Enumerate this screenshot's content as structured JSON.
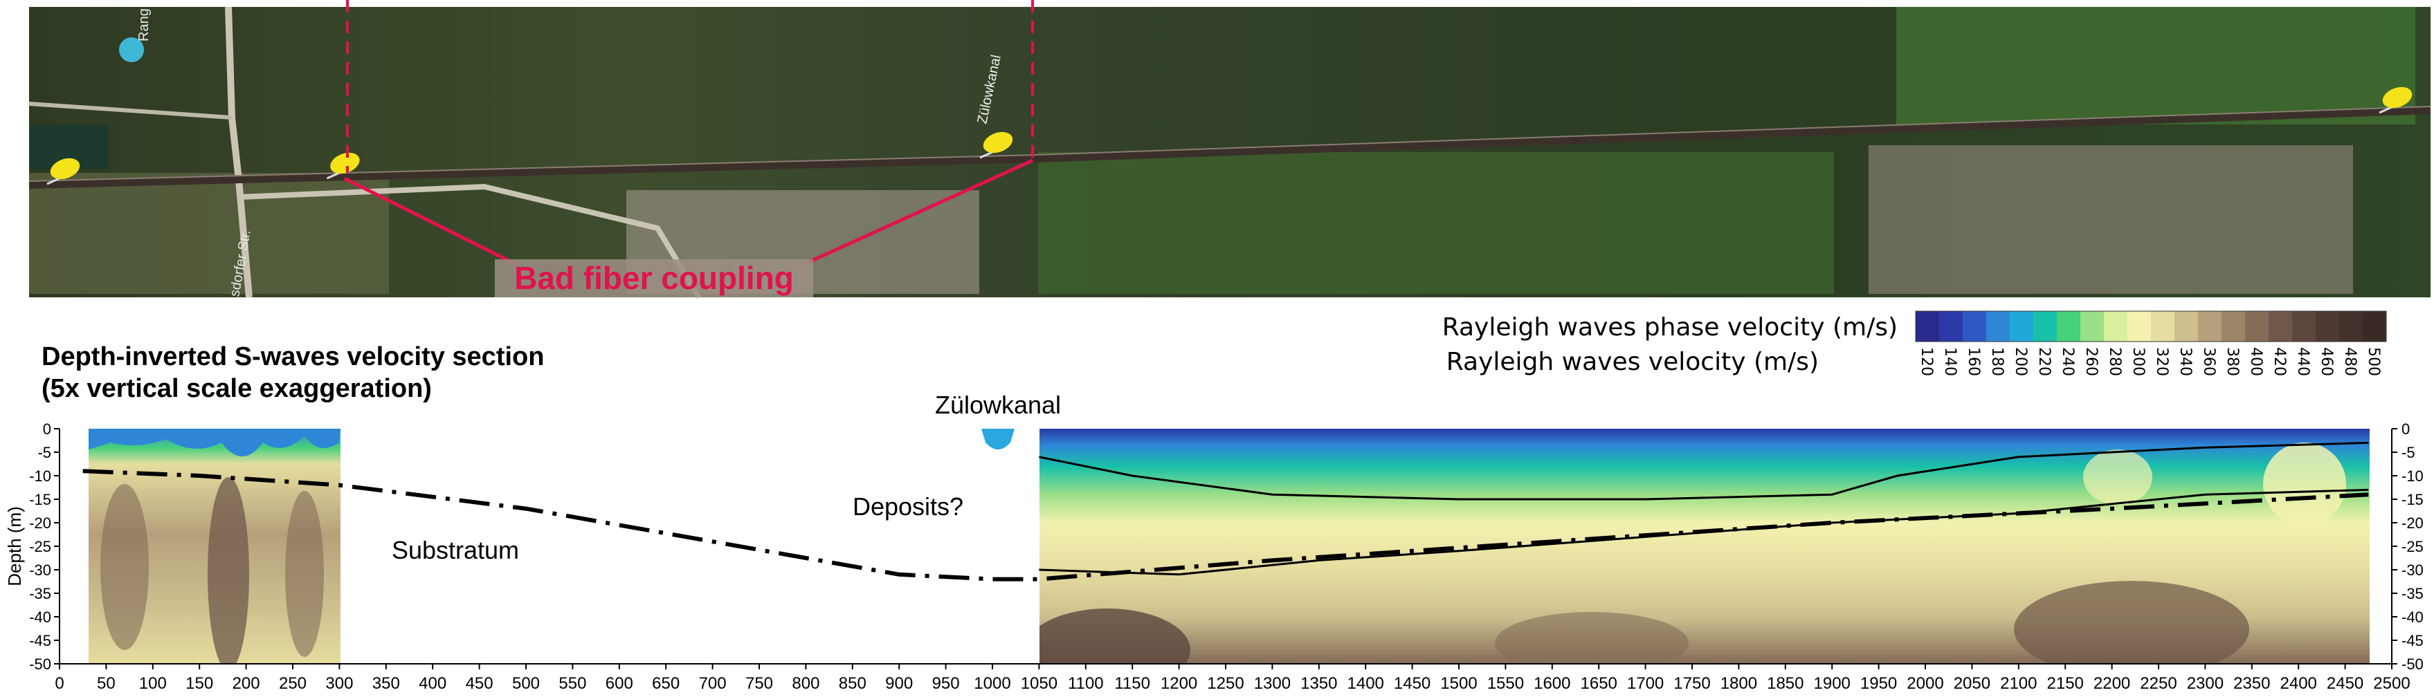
{
  "map": {
    "bad_coupling_label": "Bad fiber coupling",
    "street_labels": [
      "Rang",
      "sdorfer Str.",
      "Zülowkanal"
    ],
    "marker_positions_m": [
      0,
      300,
      1000,
      2500
    ],
    "bad_coupling_range_m": [
      300,
      1050
    ],
    "colors": {
      "annotation": "#e0134f",
      "marker": "#f4e21a"
    }
  },
  "legend": {
    "line1": "Rayleigh waves phase velocity (m/s)",
    "line2": "Rayleigh waves velocity (m/s)",
    "ticks": [
      "120",
      "140",
      "160",
      "180",
      "200",
      "220",
      "240",
      "260",
      "280",
      "300",
      "320",
      "340",
      "360",
      "380",
      "400",
      "420",
      "440",
      "460",
      "480",
      "500"
    ],
    "colors": [
      "#2a2a8c",
      "#2b3aa8",
      "#2f58c4",
      "#2f86d6",
      "#1fa9d9",
      "#19c0a8",
      "#47d07a",
      "#9ade86",
      "#d8ef9e",
      "#f3f2b0",
      "#e6dda0",
      "#cdbf8e",
      "#b6a07c",
      "#9d8569",
      "#846c58",
      "#6f5749",
      "#5d463d",
      "#4e3a33",
      "#43322c",
      "#3a2a26"
    ]
  },
  "chart_data": {
    "type": "heatmap",
    "title": "Depth-inverted S-waves velocity section",
    "subtitle": "(5x vertical scale exaggeration)",
    "xlabel": "",
    "ylabel": "Depth (m)",
    "xlim": [
      0,
      2500
    ],
    "ylim": [
      -50,
      0
    ],
    "x_ticks": [
      0,
      50,
      100,
      150,
      200,
      250,
      300,
      350,
      400,
      450,
      500,
      550,
      600,
      650,
      700,
      750,
      800,
      850,
      900,
      950,
      1000,
      1050,
      1100,
      1150,
      1200,
      1250,
      1300,
      1350,
      1400,
      1450,
      1500,
      1550,
      1600,
      1650,
      1700,
      1750,
      1800,
      1850,
      1900,
      1950,
      2000,
      2050,
      2100,
      2150,
      2200,
      2250,
      2300,
      2350,
      2400,
      2450,
      2500
    ],
    "y_ticks": [
      0,
      -5,
      -10,
      -15,
      -20,
      -25,
      -30,
      -35,
      -40,
      -45,
      -50
    ],
    "data_segments_m": [
      [
        25,
        295
      ],
      [
        1050,
        2475
      ]
    ],
    "annotations": [
      {
        "text": "Zülowkanal",
        "x": 1000
      },
      {
        "text": "Deposits?",
        "x": 950,
        "y": -17
      },
      {
        "text": "Substratum",
        "x": 420,
        "y": -26
      }
    ],
    "substratum_boundary": {
      "x": [
        25,
        150,
        300,
        500,
        700,
        900,
        1000,
        1050,
        1300,
        1600,
        1900,
        2200,
        2475
      ],
      "depth": [
        -9,
        -10,
        -12,
        -17,
        -24,
        -31,
        -32,
        -32,
        -28,
        -24,
        -20,
        -17,
        -14
      ]
    },
    "fast_top_layer_contour": {
      "x": [
        1050,
        1150,
        1300,
        1500,
        1700,
        1900,
        1970,
        2100,
        2300,
        2475
      ],
      "depth": [
        -6,
        -10,
        -14,
        -15,
        -15,
        -14,
        -10,
        -6,
        -4,
        -3
      ]
    },
    "slow_base_contour": {
      "x": [
        1050,
        1200,
        1350,
        1500,
        1700,
        1900,
        2100,
        2300,
        2475
      ],
      "depth": [
        -30,
        -31,
        -28,
        -26,
        -23,
        -20,
        -18,
        -14,
        -13
      ]
    },
    "colorbar_range": [
      120,
      500
    ]
  }
}
